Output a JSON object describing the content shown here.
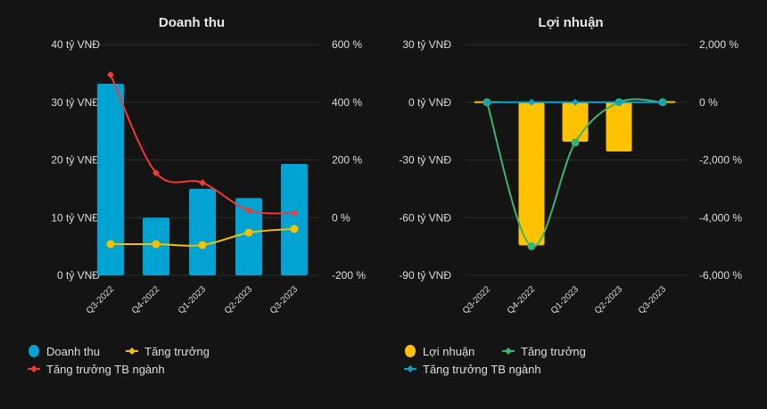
{
  "chart_data": [
    {
      "type": "bar",
      "title": "Doanh thu",
      "categories": [
        "Q3-2022",
        "Q4-2022",
        "Q1-2023",
        "Q2-2023",
        "Q3-2023"
      ],
      "left_axis": {
        "range": [
          0,
          40
        ],
        "ticks": [
          "0 tỷ VNĐ",
          "10 tỷ VNĐ",
          "20 tỷ VNĐ",
          "30 tỷ VNĐ",
          "40 tỷ VNĐ"
        ]
      },
      "right_axis": {
        "range": [
          -200,
          600
        ],
        "ticks": [
          "-200 %",
          "0 %",
          "200 %",
          "400 %",
          "600 %"
        ]
      },
      "series": [
        {
          "name": "Doanh thu",
          "kind": "bar",
          "axis": "left",
          "color": "#00a3d1",
          "values": [
            33.2,
            10.0,
            15.0,
            13.4,
            19.3
          ]
        },
        {
          "name": "Tăng trưởng",
          "kind": "line",
          "axis": "right",
          "color": "#f5c000",
          "values": [
            -92,
            -92,
            -95,
            -52,
            -39
          ]
        },
        {
          "name": "Tăng trưởng TB ngành",
          "kind": "line",
          "axis": "right",
          "color": "#ef3b33",
          "values": [
            495,
            155,
            121,
            25,
            16
          ]
        }
      ],
      "grid": true,
      "legend": "bottom"
    },
    {
      "type": "bar",
      "title": "Lợi nhuận",
      "categories": [
        "Q3-2022",
        "Q4-2022",
        "Q1-2023",
        "Q2-2023",
        "Q3-2023"
      ],
      "left_axis": {
        "range": [
          -90,
          30
        ],
        "ticks": [
          "-90 tỷ VNĐ",
          "-60 tỷ VNĐ",
          "-30 tỷ VNĐ",
          "0 tỷ VNĐ",
          "30 tỷ VNĐ"
        ]
      },
      "right_axis": {
        "range": [
          -6000,
          2000
        ],
        "ticks": [
          "-6,000 %",
          "-4,000 %",
          "-2,000 %",
          "0 %",
          "2,000 %"
        ]
      },
      "series": [
        {
          "name": "Lợi nhuận",
          "kind": "bar",
          "axis": "left",
          "color": "#ffc200",
          "values": [
            0.5,
            -74.4,
            -20.5,
            -25.6,
            0.6
          ]
        },
        {
          "name": "Tăng trưởng",
          "kind": "line",
          "axis": "right",
          "color": "#3cb371",
          "values": [
            0,
            -4990,
            -1395,
            0,
            0
          ]
        },
        {
          "name": "Tăng trưởng TB ngành",
          "kind": "line",
          "axis": "right",
          "color": "#0aa3c8",
          "values": [
            0,
            0,
            0,
            0,
            0
          ]
        }
      ],
      "grid": true,
      "legend": "bottom"
    }
  ]
}
